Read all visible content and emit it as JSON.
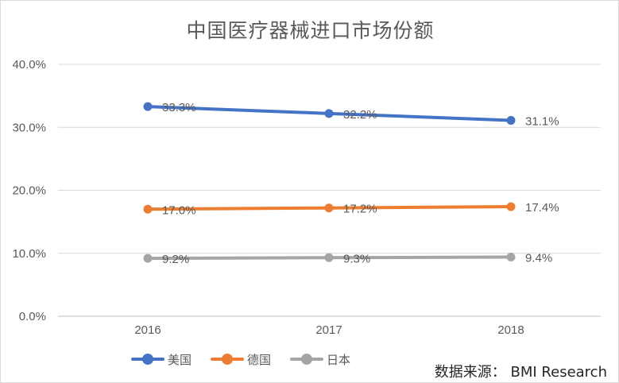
{
  "chart_data": {
    "type": "line",
    "title": "中国医疗器械进口市场份额",
    "categories": [
      "2016",
      "2017",
      "2018"
    ],
    "ylim": [
      0,
      40
    ],
    "yticks": [
      "0.0%",
      "10.0%",
      "20.0%",
      "30.0%",
      "40.0%"
    ],
    "grid": true,
    "legend_position": "bottom",
    "series": [
      {
        "name": "美国",
        "color": "#4472C4",
        "values": [
          33.3,
          32.2,
          31.1
        ],
        "labels": [
          "33.3%",
          "32.2%",
          "31.1%"
        ]
      },
      {
        "name": "德国",
        "color": "#ED7D31",
        "values": [
          17.0,
          17.2,
          17.4
        ],
        "labels": [
          "17.0%",
          "17.2%",
          "17.4%"
        ]
      },
      {
        "name": "日本",
        "color": "#A5A5A5",
        "values": [
          9.2,
          9.3,
          9.4
        ],
        "labels": [
          "9.2%",
          "9.3%",
          "9.4%"
        ]
      }
    ]
  },
  "source_text": "数据来源： BMI Research"
}
